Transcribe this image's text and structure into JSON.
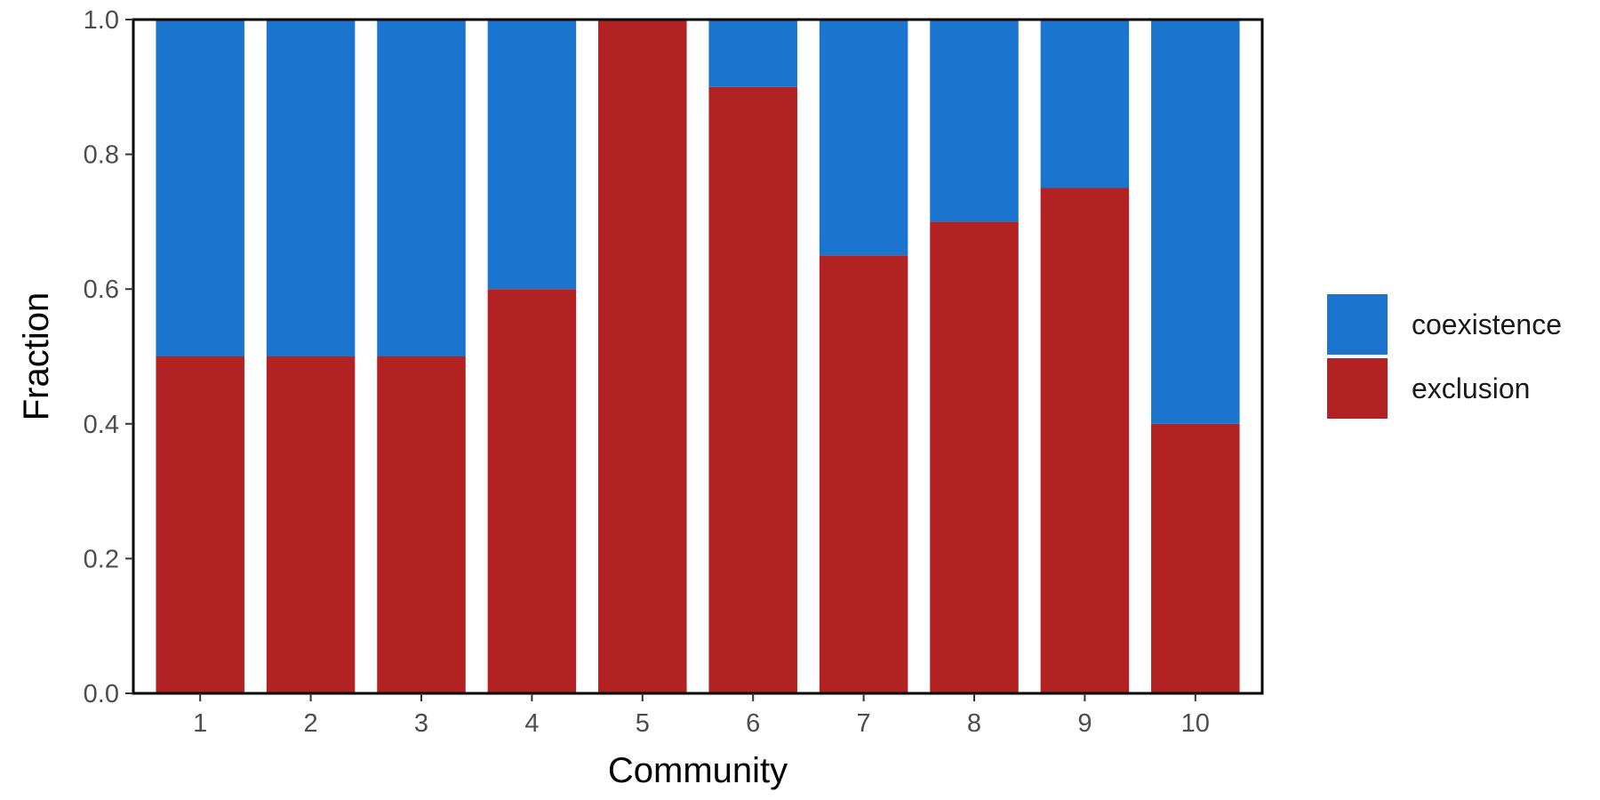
{
  "chart_data": {
    "type": "bar",
    "stacked": true,
    "categories": [
      "1",
      "2",
      "3",
      "4",
      "5",
      "6",
      "7",
      "8",
      "9",
      "10"
    ],
    "series": [
      {
        "name": "exclusion",
        "color": "#b22222",
        "values": [
          0.5,
          0.5,
          0.5,
          0.6,
          1.0,
          0.9,
          0.65,
          0.7,
          0.75,
          0.4
        ]
      },
      {
        "name": "coexistence",
        "color": "#1b74ce",
        "values": [
          0.5,
          0.5,
          0.5,
          0.4,
          0.0,
          0.1,
          0.35,
          0.3,
          0.25,
          0.6
        ]
      }
    ],
    "xlabel": "Community",
    "ylabel": "Fraction",
    "ylim": [
      0,
      1
    ],
    "yticks": [
      "0.0",
      "0.2",
      "0.4",
      "0.6",
      "0.8",
      "1.0"
    ],
    "grid": false,
    "legend": {
      "position": "right",
      "entries": [
        "coexistence",
        "exclusion"
      ]
    }
  }
}
